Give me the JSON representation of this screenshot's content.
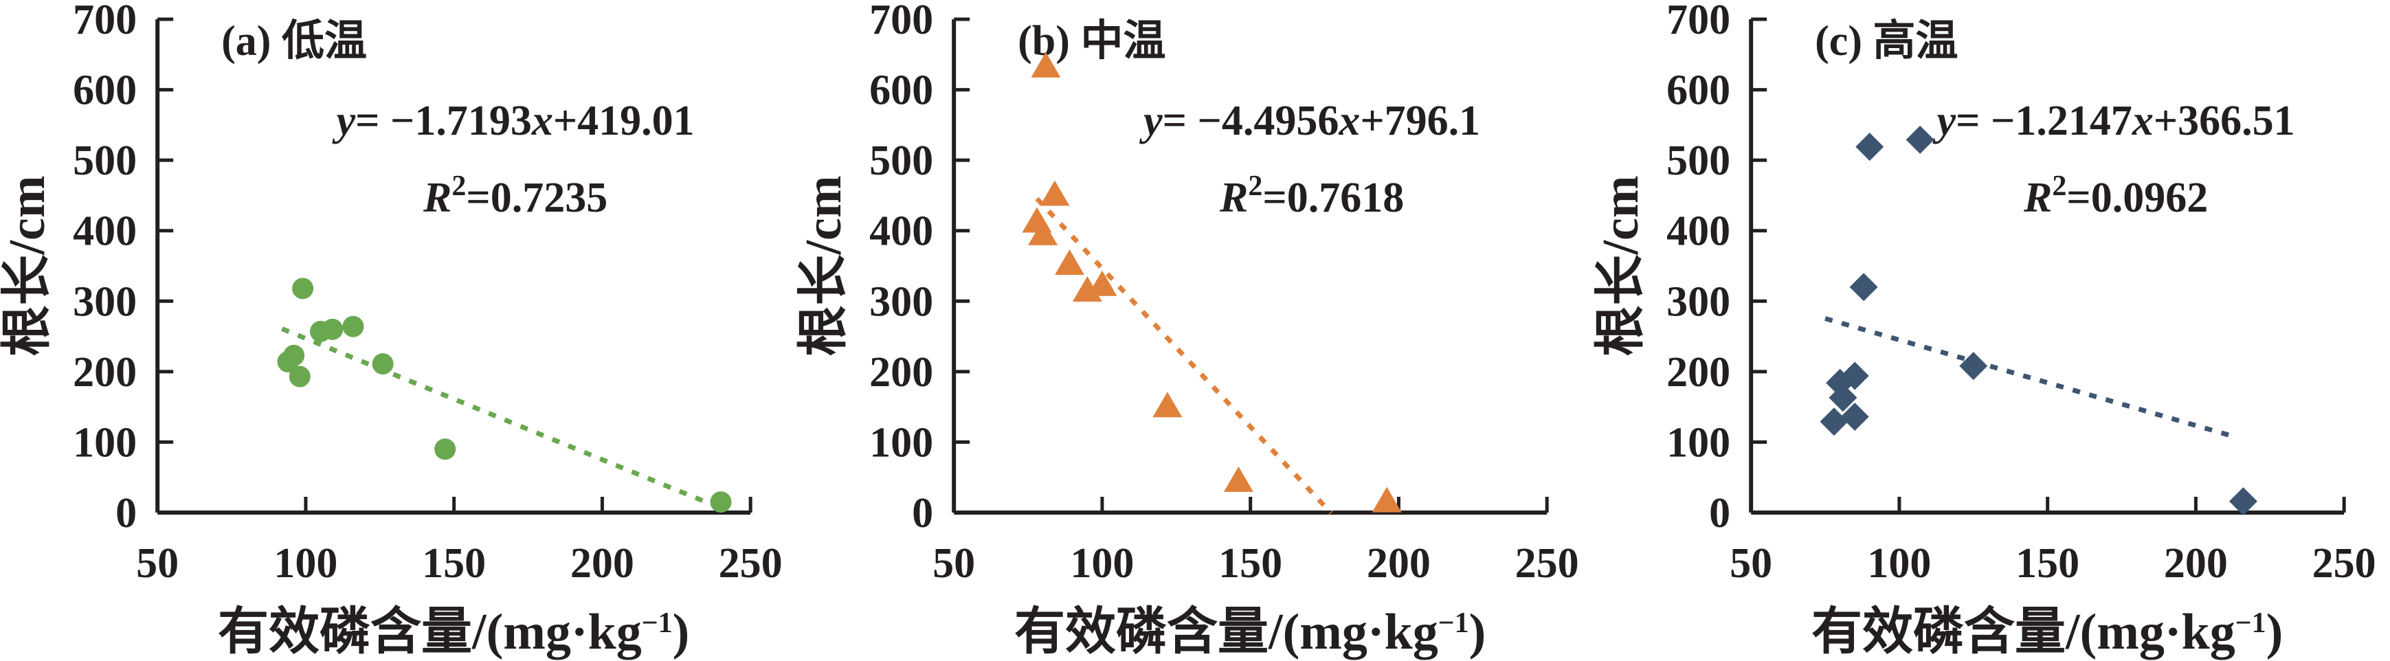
{
  "chart_data": [
    {
      "type": "scatter",
      "title": "(a) 低温",
      "xlabel": "有效磷含量/(mg·kg⁻¹)",
      "ylabel": "根长/cm",
      "xlabel_parts": {
        "main": "有效磷含量/(mg·kg",
        "sup": "−1",
        "close": ")"
      },
      "xlim": [
        50,
        250
      ],
      "ylim": [
        0,
        700
      ],
      "xticks": [
        50,
        100,
        150,
        200,
        250
      ],
      "yticks": [
        0,
        100,
        200,
        300,
        400,
        500,
        600,
        700
      ],
      "grid": false,
      "marker": "circle",
      "color": "#6aa84f",
      "points": [
        [
          99,
          318
        ],
        [
          105,
          257
        ],
        [
          109,
          260
        ],
        [
          116,
          264
        ],
        [
          94,
          214
        ],
        [
          96,
          223
        ],
        [
          98,
          193
        ],
        [
          126,
          211
        ],
        [
          147,
          90
        ],
        [
          240,
          15
        ]
      ],
      "trendline": {
        "style": "dashed",
        "slope": -1.7193,
        "intercept": 419.01,
        "x_range": [
          92,
          242
        ],
        "equation": "y= −1.7193x+419.01",
        "r_squared": "R²=0.7235"
      },
      "eq_parts": {
        "lhs": "y",
        "mid": "= −1.7193",
        "xvar": "x",
        "tail": "+419.01"
      },
      "r2_parts": {
        "var": "R",
        "sup": "2",
        "rest": "=0.7235"
      }
    },
    {
      "type": "scatter",
      "title": "(b) 中温",
      "xlabel": "有效磷含量/(mg·kg⁻¹)",
      "ylabel": "根长/cm",
      "xlabel_parts": {
        "main": "有效磷含量/(mg·kg",
        "sup": "−1",
        "close": ")"
      },
      "xlim": [
        50,
        250
      ],
      "ylim": [
        0,
        700
      ],
      "xticks": [
        50,
        100,
        150,
        200,
        250
      ],
      "yticks": [
        0,
        100,
        200,
        300,
        400,
        500,
        600,
        700
      ],
      "grid": false,
      "marker": "triangle",
      "color": "#e0813b",
      "points": [
        [
          81,
          630
        ],
        [
          84,
          448
        ],
        [
          78,
          410
        ],
        [
          80,
          392
        ],
        [
          89,
          350
        ],
        [
          95,
          312
        ],
        [
          100,
          320
        ],
        [
          122,
          148
        ],
        [
          146,
          42
        ],
        [
          196,
          13
        ]
      ],
      "trendline": {
        "style": "dashed",
        "slope": -4.4956,
        "intercept": 796.1,
        "x_range": [
          78,
          177.2
        ],
        "equation": "y= −4.4956x+796.1",
        "r_squared": "R²=0.7618"
      },
      "eq_parts": {
        "lhs": "y",
        "mid": "= −4.4956",
        "xvar": "x",
        "tail": "+796.1"
      },
      "r2_parts": {
        "var": "R",
        "sup": "2",
        "rest": "=0.7618"
      }
    },
    {
      "type": "scatter",
      "title": "(c) 高温",
      "xlabel": "有效磷含量/(mg·kg⁻¹)",
      "ylabel": "根长/cm",
      "xlabel_parts": {
        "main": "有效磷含量/(mg·kg",
        "sup": "−1",
        "close": ")"
      },
      "xlim": [
        50,
        250
      ],
      "ylim": [
        0,
        700
      ],
      "xticks": [
        50,
        100,
        150,
        200,
        250
      ],
      "yticks": [
        0,
        100,
        200,
        300,
        400,
        500,
        600,
        700
      ],
      "grid": false,
      "marker": "diamond",
      "color": "#3e5571",
      "points": [
        [
          90,
          519
        ],
        [
          107,
          529
        ],
        [
          88,
          320
        ],
        [
          125,
          208
        ],
        [
          85,
          194
        ],
        [
          80,
          184
        ],
        [
          81,
          163
        ],
        [
          85,
          136
        ],
        [
          78,
          129
        ],
        [
          216,
          16
        ]
      ],
      "trendline": {
        "style": "dashed",
        "slope": -1.2147,
        "intercept": 366.51,
        "x_range": [
          75,
          214
        ],
        "equation": "y= −1.2147x+366.51",
        "r_squared": "R²=0.0962"
      },
      "eq_parts": {
        "lhs": "y",
        "mid": "= −1.2147",
        "xvar": "x",
        "tail": "+366.51"
      },
      "r2_parts": {
        "var": "R",
        "sup": "2",
        "rest": "=0.0962"
      }
    }
  ]
}
